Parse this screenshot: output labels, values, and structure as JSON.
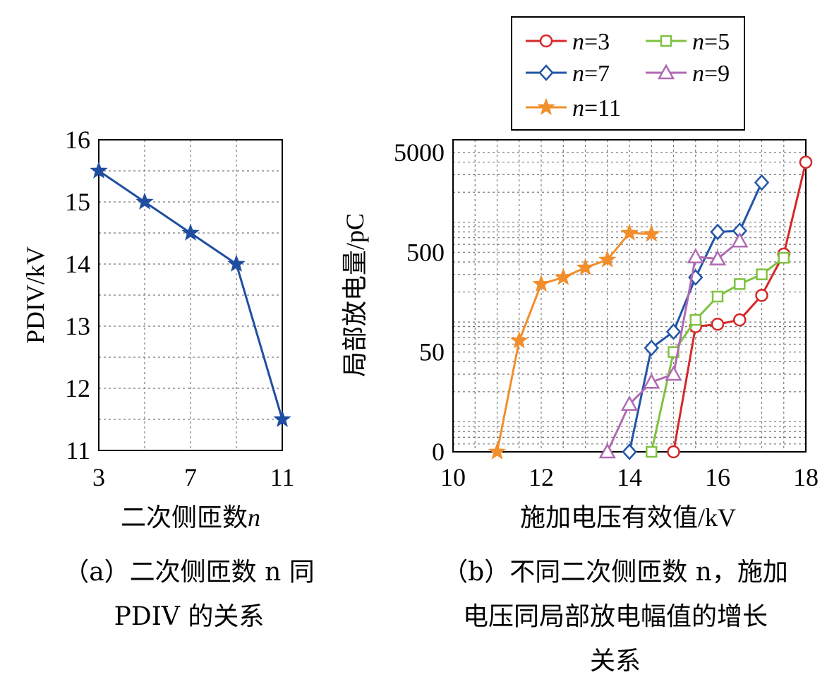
{
  "chart_data": [
    {
      "type": "line",
      "xlabel": "二次侧匝数",
      "xlabel_var": "n",
      "ylabel": "PDIV/kV",
      "xlim": [
        3,
        11
      ],
      "ylim": [
        11,
        16
      ],
      "x_ticks": [
        "3",
        "7",
        "11"
      ],
      "y_ticks": [
        "11",
        "12",
        "13",
        "14",
        "15",
        "16"
      ],
      "grid": true,
      "series": [
        {
          "x": [
            3,
            5,
            7,
            9,
            11
          ],
          "y": [
            15.5,
            15.0,
            14.5,
            14.0,
            11.5
          ],
          "color": "#1f4ea1",
          "marker": "star"
        }
      ],
      "caption_lines": [
        "（a）二次侧匝数 n 同",
        "PDIV 的关系"
      ]
    },
    {
      "type": "line",
      "xlabel": "施加电压有效值/kV",
      "ylabel": "局部放电量/pC",
      "xlim": [
        10,
        18
      ],
      "y_scale": "log (0 at bottom)",
      "x_ticks": [
        "10",
        "12",
        "14",
        "16",
        "18"
      ],
      "y_ticks": [
        "0",
        "50",
        "500",
        "5000"
      ],
      "grid": true,
      "legend_position": "top-right (above plot)",
      "series": [
        {
          "name": "n=3",
          "var": "n",
          "num": "=3",
          "color": "#d62728",
          "marker": "circle",
          "x": [
            15.0,
            15.5,
            16.0,
            16.5,
            17.0,
            17.5,
            18.0
          ],
          "y": [
            0,
            90,
            95,
            105,
            185,
            480,
            4000
          ]
        },
        {
          "name": "n=5",
          "var": "n",
          "num": "=5",
          "color": "#7fc241",
          "marker": "square",
          "x": [
            14.5,
            15.0,
            15.5,
            16.0,
            16.5,
            17.0,
            17.5
          ],
          "y": [
            0,
            50,
            105,
            180,
            240,
            300,
            440
          ]
        },
        {
          "name": "n=7",
          "var": "n",
          "num": "=7",
          "color": "#2155a8",
          "marker": "diamond",
          "x": [
            14.0,
            14.5,
            15.0,
            15.5,
            16.0,
            16.5,
            17.0
          ],
          "y": [
            0,
            55,
            80,
            280,
            800,
            820,
            2500
          ]
        },
        {
          "name": "n=9",
          "var": "n",
          "num": "=9",
          "color": "#b06ab3",
          "marker": "triangle",
          "x": [
            13.5,
            14.0,
            14.5,
            15.0,
            15.5,
            16.0,
            16.5
          ],
          "y": [
            0,
            15,
            25,
            30,
            450,
            430,
            650
          ]
        },
        {
          "name": "n=11",
          "var": "n",
          "num": "=11",
          "color": "#f28e2b",
          "marker": "star",
          "x": [
            11.0,
            11.5,
            12.0,
            12.5,
            13.0,
            13.5,
            14.0,
            14.5
          ],
          "y": [
            0,
            65,
            240,
            280,
            350,
            420,
            780,
            760
          ]
        }
      ],
      "caption_lines": [
        "（b）不同二次侧匝数 n，施加",
        "电压同局部放电幅值的增长",
        "关系"
      ]
    }
  ]
}
